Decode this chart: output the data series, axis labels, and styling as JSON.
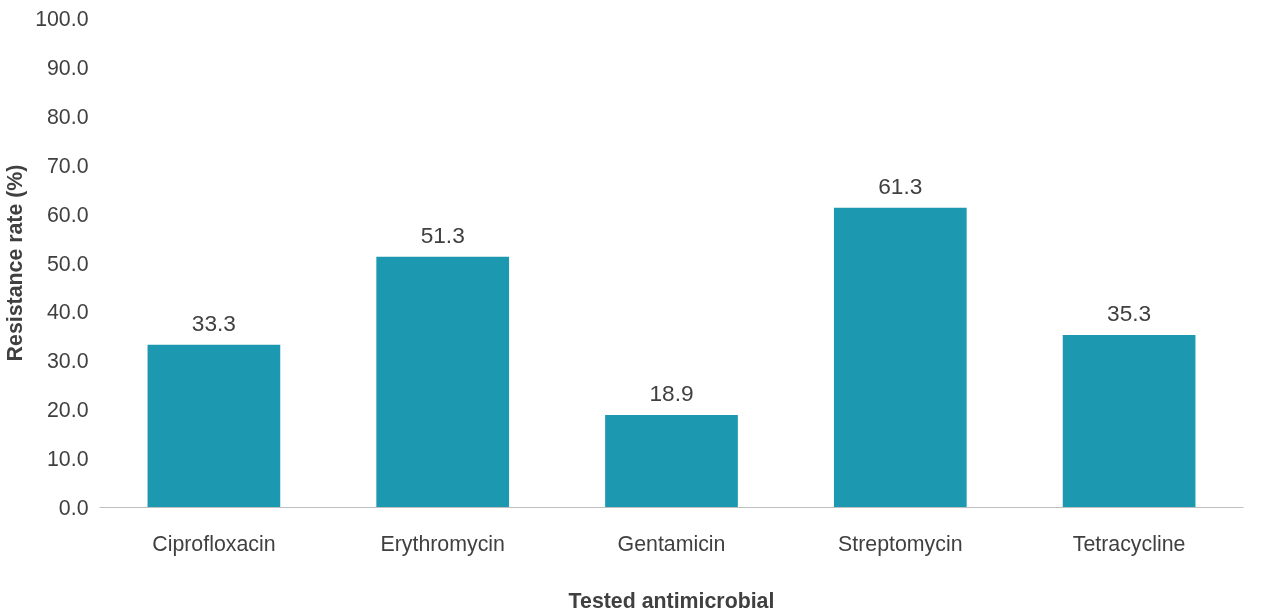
{
  "chart_data": {
    "type": "bar",
    "xlabel": "Tested antimicrobial",
    "ylabel": "Resistance rate (%)",
    "categories": [
      "Ciprofloxacin",
      "Erythromycin",
      "Gentamicin",
      "Streptomycin",
      "Tetracycline"
    ],
    "values": [
      33.3,
      51.3,
      18.9,
      61.3,
      35.3
    ],
    "color": "#1c98b0",
    "ylim": [
      0,
      100
    ],
    "yticks": [
      {
        "value": 0,
        "label": "0.0"
      },
      {
        "value": 10,
        "label": "10.0"
      },
      {
        "value": 20,
        "label": "20.0"
      },
      {
        "value": 30,
        "label": "30.0"
      },
      {
        "value": 40,
        "label": "40.0"
      },
      {
        "value": 50,
        "label": "50.0"
      },
      {
        "value": 60,
        "label": "60.0"
      },
      {
        "value": 70,
        "label": "70.0"
      },
      {
        "value": 80,
        "label": "80.0"
      },
      {
        "value": 90,
        "label": "90.0"
      },
      {
        "value": 100,
        "label": "100.0"
      }
    ],
    "data_labels": true,
    "grid": false
  }
}
